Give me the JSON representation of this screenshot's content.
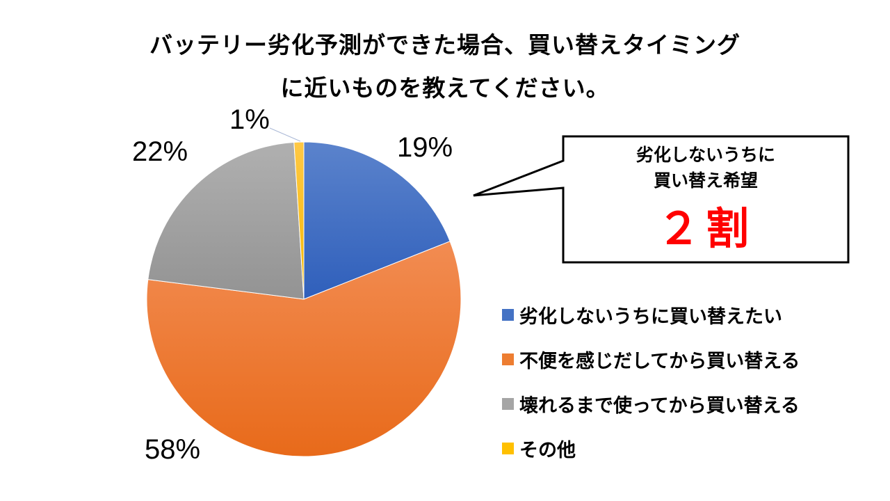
{
  "title": {
    "line1": "バッテリー劣化予測ができた場合、買い替えタイミング",
    "line2": "に近いものを教えてください。"
  },
  "callout": {
    "line1": "劣化しないうちに",
    "line2": "買い替え希望",
    "highlight": "２割",
    "highlight_color": "#ff0000"
  },
  "labels": {
    "blue": "19%",
    "orange": "58%",
    "gray": "22%",
    "yellow": "1%"
  },
  "legend": [
    {
      "label": "劣化しないうちに買い替えたい",
      "color": "#4472c4"
    },
    {
      "label": "不便を感じだしてから買い替える",
      "color": "#ed7d31"
    },
    {
      "label": "壊れるまで使ってから買い替える",
      "color": "#a5a5a5"
    },
    {
      "label": "その他",
      "color": "#ffc000"
    }
  ],
  "chart_data": {
    "type": "pie",
    "title": "バッテリー劣化予測ができた場合、買い替えタイミングに近いものを教えてください。",
    "categories": [
      "劣化しないうちに買い替えたい",
      "不便を感じだしてから買い替える",
      "壊れるまで使ってから買い替える",
      "その他"
    ],
    "values": [
      19,
      58,
      22,
      1
    ],
    "unit": "%",
    "colors": [
      "#4472c4",
      "#ed7d31",
      "#a5a5a5",
      "#ffc000"
    ],
    "legend_position": "right",
    "annotation": "劣化しないうちに買い替え希望 ２割"
  }
}
